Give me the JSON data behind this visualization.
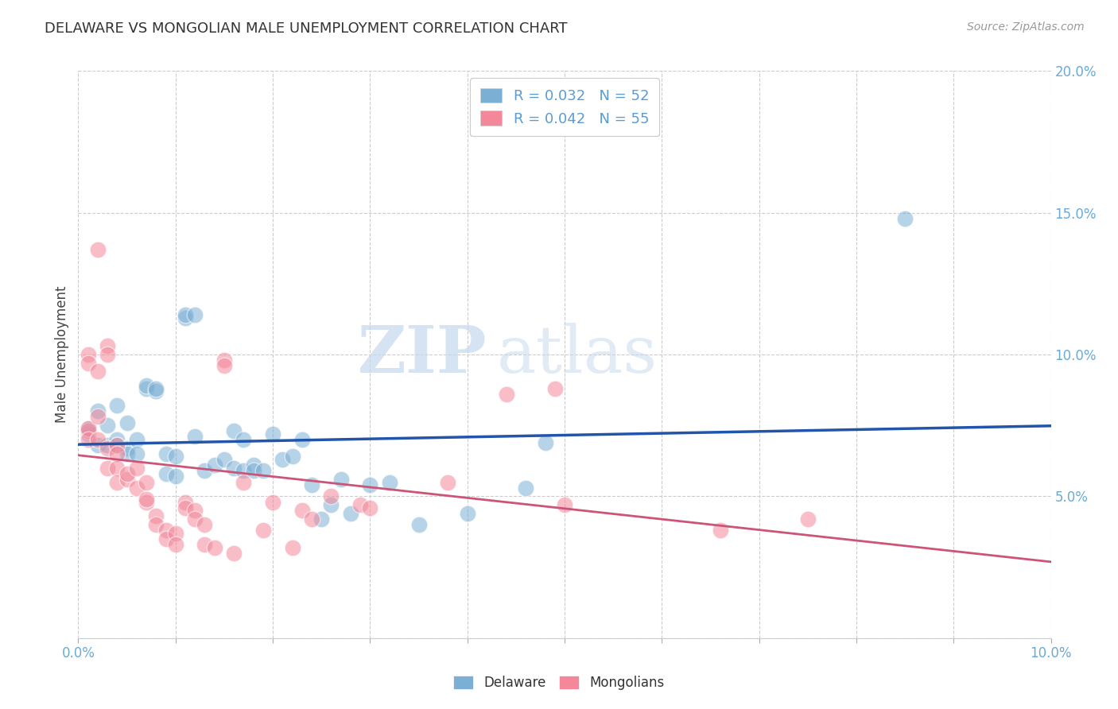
{
  "title": "DELAWARE VS MONGOLIAN MALE UNEMPLOYMENT CORRELATION CHART",
  "source": "Source: ZipAtlas.com",
  "ylabel_label": "Male Unemployment",
  "watermark_zip": "ZIP",
  "watermark_atlas": "atlas",
  "bottom_legend": [
    "Delaware",
    "Mongolians"
  ],
  "xlim": [
    0,
    0.1
  ],
  "ylim": [
    0,
    0.2
  ],
  "xtick_vals": [
    0.0,
    0.01,
    0.02,
    0.03,
    0.04,
    0.05,
    0.06,
    0.07,
    0.08,
    0.09,
    0.1
  ],
  "xtick_show": [
    0.0,
    0.05,
    0.1
  ],
  "xtick_labels_show": [
    "0.0%",
    "",
    "10.0%"
  ],
  "ytick_vals": [
    0.0,
    0.05,
    0.1,
    0.15,
    0.2
  ],
  "ytick_labels_right": [
    "",
    "5.0%",
    "10.0%",
    "15.0%",
    "20.0%"
  ],
  "delaware_color": "#7bafd4",
  "mongolian_color": "#f4879a",
  "delaware_line_color": "#2255aa",
  "mongolian_line_color": "#cc5577",
  "background_color": "#ffffff",
  "tick_color": "#6aaad4",
  "legend_label_color": "#5b9bd5",
  "delaware_points": [
    [
      0.001,
      0.072
    ],
    [
      0.001,
      0.074
    ],
    [
      0.002,
      0.08
    ],
    [
      0.002,
      0.068
    ],
    [
      0.003,
      0.075
    ],
    [
      0.003,
      0.068
    ],
    [
      0.004,
      0.07
    ],
    [
      0.004,
      0.082
    ],
    [
      0.004,
      0.068
    ],
    [
      0.005,
      0.076
    ],
    [
      0.005,
      0.067
    ],
    [
      0.005,
      0.065
    ],
    [
      0.006,
      0.07
    ],
    [
      0.006,
      0.065
    ],
    [
      0.007,
      0.088
    ],
    [
      0.007,
      0.089
    ],
    [
      0.008,
      0.087
    ],
    [
      0.008,
      0.088
    ],
    [
      0.009,
      0.065
    ],
    [
      0.009,
      0.058
    ],
    [
      0.01,
      0.064
    ],
    [
      0.01,
      0.057
    ],
    [
      0.011,
      0.113
    ],
    [
      0.011,
      0.114
    ],
    [
      0.012,
      0.114
    ],
    [
      0.012,
      0.071
    ],
    [
      0.013,
      0.059
    ],
    [
      0.014,
      0.061
    ],
    [
      0.015,
      0.063
    ],
    [
      0.016,
      0.073
    ],
    [
      0.016,
      0.06
    ],
    [
      0.017,
      0.07
    ],
    [
      0.017,
      0.059
    ],
    [
      0.018,
      0.061
    ],
    [
      0.018,
      0.059
    ],
    [
      0.019,
      0.059
    ],
    [
      0.02,
      0.072
    ],
    [
      0.021,
      0.063
    ],
    [
      0.022,
      0.064
    ],
    [
      0.023,
      0.07
    ],
    [
      0.024,
      0.054
    ],
    [
      0.025,
      0.042
    ],
    [
      0.026,
      0.047
    ],
    [
      0.027,
      0.056
    ],
    [
      0.028,
      0.044
    ],
    [
      0.03,
      0.054
    ],
    [
      0.032,
      0.055
    ],
    [
      0.035,
      0.04
    ],
    [
      0.04,
      0.044
    ],
    [
      0.046,
      0.053
    ],
    [
      0.048,
      0.069
    ],
    [
      0.085,
      0.148
    ]
  ],
  "mongolian_points": [
    [
      0.001,
      0.073
    ],
    [
      0.001,
      0.074
    ],
    [
      0.001,
      0.07
    ],
    [
      0.001,
      0.1
    ],
    [
      0.001,
      0.097
    ],
    [
      0.002,
      0.094
    ],
    [
      0.002,
      0.078
    ],
    [
      0.002,
      0.137
    ],
    [
      0.002,
      0.07
    ],
    [
      0.003,
      0.103
    ],
    [
      0.003,
      0.1
    ],
    [
      0.003,
      0.067
    ],
    [
      0.003,
      0.06
    ],
    [
      0.004,
      0.068
    ],
    [
      0.004,
      0.065
    ],
    [
      0.004,
      0.06
    ],
    [
      0.004,
      0.055
    ],
    [
      0.005,
      0.056
    ],
    [
      0.005,
      0.058
    ],
    [
      0.006,
      0.06
    ],
    [
      0.006,
      0.053
    ],
    [
      0.007,
      0.055
    ],
    [
      0.007,
      0.048
    ],
    [
      0.007,
      0.049
    ],
    [
      0.008,
      0.043
    ],
    [
      0.008,
      0.04
    ],
    [
      0.009,
      0.038
    ],
    [
      0.009,
      0.035
    ],
    [
      0.01,
      0.037
    ],
    [
      0.01,
      0.033
    ],
    [
      0.011,
      0.048
    ],
    [
      0.011,
      0.046
    ],
    [
      0.012,
      0.045
    ],
    [
      0.012,
      0.042
    ],
    [
      0.013,
      0.04
    ],
    [
      0.013,
      0.033
    ],
    [
      0.014,
      0.032
    ],
    [
      0.015,
      0.098
    ],
    [
      0.015,
      0.096
    ],
    [
      0.016,
      0.03
    ],
    [
      0.017,
      0.055
    ],
    [
      0.019,
      0.038
    ],
    [
      0.02,
      0.048
    ],
    [
      0.022,
      0.032
    ],
    [
      0.023,
      0.045
    ],
    [
      0.024,
      0.042
    ],
    [
      0.026,
      0.05
    ],
    [
      0.029,
      0.047
    ],
    [
      0.03,
      0.046
    ],
    [
      0.038,
      0.055
    ],
    [
      0.044,
      0.086
    ],
    [
      0.049,
      0.088
    ],
    [
      0.05,
      0.047
    ],
    [
      0.066,
      0.038
    ],
    [
      0.075,
      0.042
    ]
  ]
}
